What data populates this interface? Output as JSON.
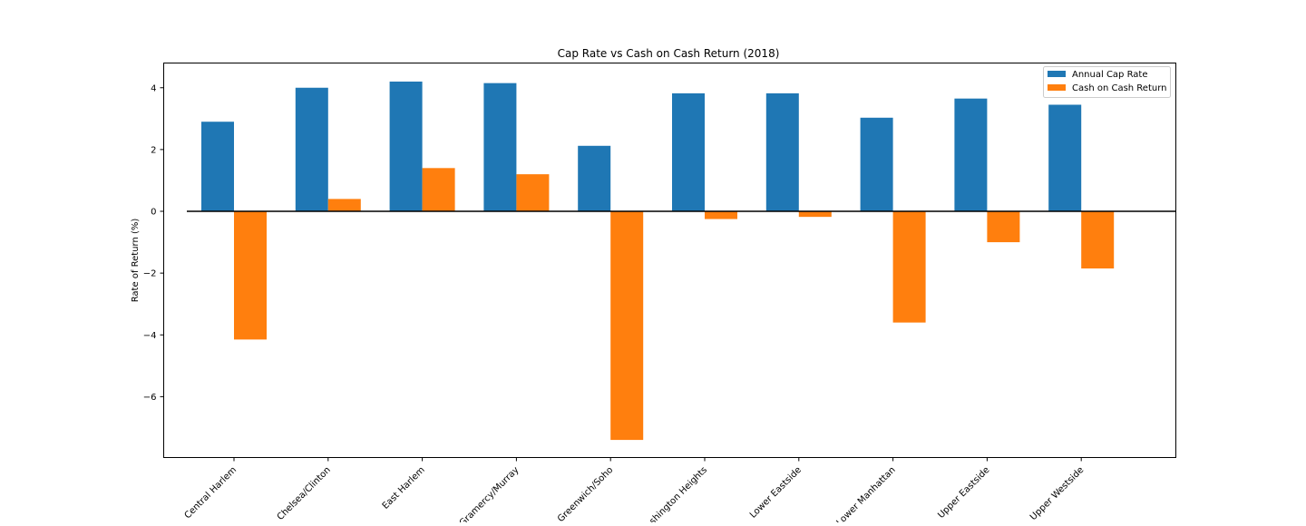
{
  "chart_data": {
    "type": "bar",
    "title": "Cap Rate vs Cash on Cash Return (2018)",
    "xlabel": "",
    "ylabel": "Rate of Return (%)",
    "categories": [
      "Central Harlem",
      "Chelsea/Clinton",
      "East Harlem",
      "Gramercy/Murray",
      "Greenwich/Soho",
      "Washington Heights",
      "Lower Eastside",
      "Lower Manhattan",
      "Upper Eastside",
      "Upper Westside"
    ],
    "series": [
      {
        "name": "Annual Cap Rate",
        "color": "#1f77b4",
        "values": [
          2.9,
          4.0,
          4.2,
          4.15,
          2.12,
          3.82,
          3.82,
          3.03,
          3.65,
          3.45
        ]
      },
      {
        "name": "Cash on Cash Return",
        "color": "#ff7f0e",
        "values": [
          -4.15,
          0.4,
          1.4,
          1.2,
          -7.4,
          -0.25,
          -0.18,
          -3.6,
          -1.0,
          -1.85
        ]
      }
    ],
    "ylim": [
      -7.97,
      4.8
    ],
    "yticks": [
      4,
      2,
      0,
      -2,
      -4,
      -6
    ],
    "ytick_labels": [
      "4",
      "2",
      "0",
      "−2",
      "−4",
      "−6"
    ],
    "zero_line": true,
    "grid": false,
    "legend": "top-right"
  }
}
